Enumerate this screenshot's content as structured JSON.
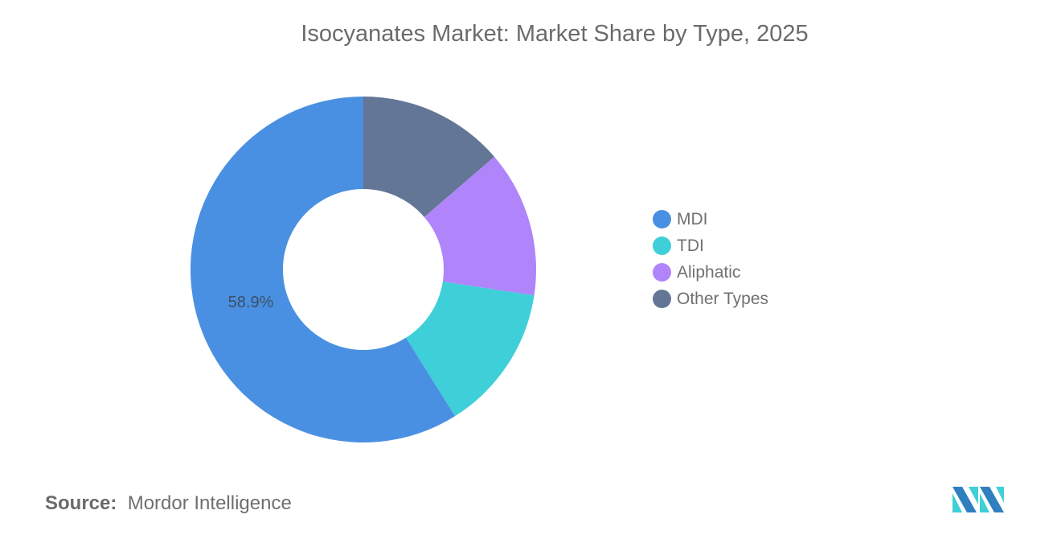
{
  "title": "Isocyanates Market: Market Share by Type, 2025",
  "source": {
    "label": "Source:",
    "value": "Mordor Intelligence"
  },
  "logo": "mordor-intelligence-logo",
  "legend": [
    {
      "label": "MDI",
      "color": "#4a90e2"
    },
    {
      "label": "TDI",
      "color": "#3ecfd8"
    },
    {
      "label": "Aliphatic",
      "color": "#b084fb"
    },
    {
      "label": "Other Types",
      "color": "#637696"
    }
  ],
  "chart_data": {
    "type": "pie",
    "variant": "donut",
    "title": "Isocyanates Market: Market Share by Type, 2025",
    "categories": [
      "MDI",
      "TDI",
      "Aliphatic",
      "Other Types"
    ],
    "values": [
      58.9,
      13.7,
      13.7,
      13.7
    ],
    "colors": [
      "#4a90e2",
      "#3ecfd8",
      "#b084fb",
      "#637696"
    ],
    "data_labels": [
      {
        "category": "MDI",
        "text": "58.9%"
      }
    ],
    "legend_position": "right",
    "unit": "%",
    "start_angle": "12 o'clock, Other Types clockwise first"
  }
}
